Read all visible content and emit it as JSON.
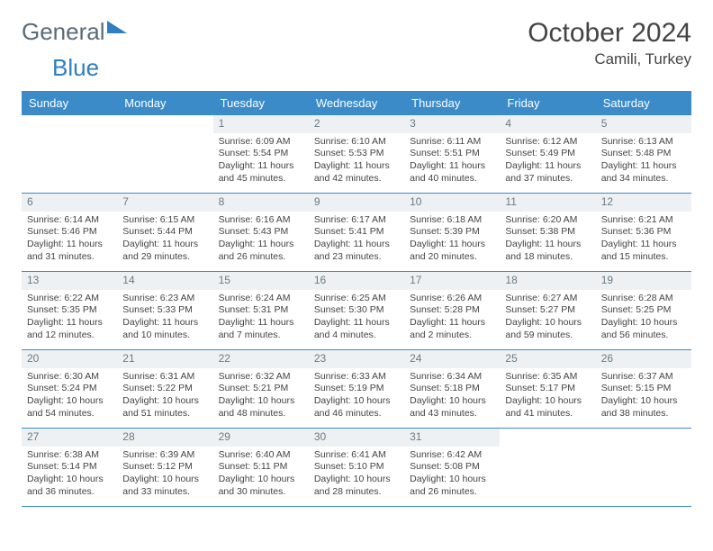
{
  "brand": {
    "part1": "General",
    "part2": "Blue"
  },
  "title": "October 2024",
  "location": "Camili, Turkey",
  "colors": {
    "header_bg": "#3b8bc9",
    "header_text": "#ffffff",
    "daynum_bg": "#eef1f3",
    "daynum_text": "#6a7a86",
    "body_text": "#444444",
    "brand_gray": "#5a6b78",
    "brand_blue": "#2f7ebf",
    "row_divider": "#3b8bc9"
  },
  "day_names": [
    "Sunday",
    "Monday",
    "Tuesday",
    "Wednesday",
    "Thursday",
    "Friday",
    "Saturday"
  ],
  "weeks": [
    [
      {
        "n": "",
        "sunrise": "",
        "sunset": "",
        "daylight": ""
      },
      {
        "n": "",
        "sunrise": "",
        "sunset": "",
        "daylight": ""
      },
      {
        "n": "1",
        "sunrise": "Sunrise: 6:09 AM",
        "sunset": "Sunset: 5:54 PM",
        "daylight": "Daylight: 11 hours and 45 minutes."
      },
      {
        "n": "2",
        "sunrise": "Sunrise: 6:10 AM",
        "sunset": "Sunset: 5:53 PM",
        "daylight": "Daylight: 11 hours and 42 minutes."
      },
      {
        "n": "3",
        "sunrise": "Sunrise: 6:11 AM",
        "sunset": "Sunset: 5:51 PM",
        "daylight": "Daylight: 11 hours and 40 minutes."
      },
      {
        "n": "4",
        "sunrise": "Sunrise: 6:12 AM",
        "sunset": "Sunset: 5:49 PM",
        "daylight": "Daylight: 11 hours and 37 minutes."
      },
      {
        "n": "5",
        "sunrise": "Sunrise: 6:13 AM",
        "sunset": "Sunset: 5:48 PM",
        "daylight": "Daylight: 11 hours and 34 minutes."
      }
    ],
    [
      {
        "n": "6",
        "sunrise": "Sunrise: 6:14 AM",
        "sunset": "Sunset: 5:46 PM",
        "daylight": "Daylight: 11 hours and 31 minutes."
      },
      {
        "n": "7",
        "sunrise": "Sunrise: 6:15 AM",
        "sunset": "Sunset: 5:44 PM",
        "daylight": "Daylight: 11 hours and 29 minutes."
      },
      {
        "n": "8",
        "sunrise": "Sunrise: 6:16 AM",
        "sunset": "Sunset: 5:43 PM",
        "daylight": "Daylight: 11 hours and 26 minutes."
      },
      {
        "n": "9",
        "sunrise": "Sunrise: 6:17 AM",
        "sunset": "Sunset: 5:41 PM",
        "daylight": "Daylight: 11 hours and 23 minutes."
      },
      {
        "n": "10",
        "sunrise": "Sunrise: 6:18 AM",
        "sunset": "Sunset: 5:39 PM",
        "daylight": "Daylight: 11 hours and 20 minutes."
      },
      {
        "n": "11",
        "sunrise": "Sunrise: 6:20 AM",
        "sunset": "Sunset: 5:38 PM",
        "daylight": "Daylight: 11 hours and 18 minutes."
      },
      {
        "n": "12",
        "sunrise": "Sunrise: 6:21 AM",
        "sunset": "Sunset: 5:36 PM",
        "daylight": "Daylight: 11 hours and 15 minutes."
      }
    ],
    [
      {
        "n": "13",
        "sunrise": "Sunrise: 6:22 AM",
        "sunset": "Sunset: 5:35 PM",
        "daylight": "Daylight: 11 hours and 12 minutes."
      },
      {
        "n": "14",
        "sunrise": "Sunrise: 6:23 AM",
        "sunset": "Sunset: 5:33 PM",
        "daylight": "Daylight: 11 hours and 10 minutes."
      },
      {
        "n": "15",
        "sunrise": "Sunrise: 6:24 AM",
        "sunset": "Sunset: 5:31 PM",
        "daylight": "Daylight: 11 hours and 7 minutes."
      },
      {
        "n": "16",
        "sunrise": "Sunrise: 6:25 AM",
        "sunset": "Sunset: 5:30 PM",
        "daylight": "Daylight: 11 hours and 4 minutes."
      },
      {
        "n": "17",
        "sunrise": "Sunrise: 6:26 AM",
        "sunset": "Sunset: 5:28 PM",
        "daylight": "Daylight: 11 hours and 2 minutes."
      },
      {
        "n": "18",
        "sunrise": "Sunrise: 6:27 AM",
        "sunset": "Sunset: 5:27 PM",
        "daylight": "Daylight: 10 hours and 59 minutes."
      },
      {
        "n": "19",
        "sunrise": "Sunrise: 6:28 AM",
        "sunset": "Sunset: 5:25 PM",
        "daylight": "Daylight: 10 hours and 56 minutes."
      }
    ],
    [
      {
        "n": "20",
        "sunrise": "Sunrise: 6:30 AM",
        "sunset": "Sunset: 5:24 PM",
        "daylight": "Daylight: 10 hours and 54 minutes."
      },
      {
        "n": "21",
        "sunrise": "Sunrise: 6:31 AM",
        "sunset": "Sunset: 5:22 PM",
        "daylight": "Daylight: 10 hours and 51 minutes."
      },
      {
        "n": "22",
        "sunrise": "Sunrise: 6:32 AM",
        "sunset": "Sunset: 5:21 PM",
        "daylight": "Daylight: 10 hours and 48 minutes."
      },
      {
        "n": "23",
        "sunrise": "Sunrise: 6:33 AM",
        "sunset": "Sunset: 5:19 PM",
        "daylight": "Daylight: 10 hours and 46 minutes."
      },
      {
        "n": "24",
        "sunrise": "Sunrise: 6:34 AM",
        "sunset": "Sunset: 5:18 PM",
        "daylight": "Daylight: 10 hours and 43 minutes."
      },
      {
        "n": "25",
        "sunrise": "Sunrise: 6:35 AM",
        "sunset": "Sunset: 5:17 PM",
        "daylight": "Daylight: 10 hours and 41 minutes."
      },
      {
        "n": "26",
        "sunrise": "Sunrise: 6:37 AM",
        "sunset": "Sunset: 5:15 PM",
        "daylight": "Daylight: 10 hours and 38 minutes."
      }
    ],
    [
      {
        "n": "27",
        "sunrise": "Sunrise: 6:38 AM",
        "sunset": "Sunset: 5:14 PM",
        "daylight": "Daylight: 10 hours and 36 minutes."
      },
      {
        "n": "28",
        "sunrise": "Sunrise: 6:39 AM",
        "sunset": "Sunset: 5:12 PM",
        "daylight": "Daylight: 10 hours and 33 minutes."
      },
      {
        "n": "29",
        "sunrise": "Sunrise: 6:40 AM",
        "sunset": "Sunset: 5:11 PM",
        "daylight": "Daylight: 10 hours and 30 minutes."
      },
      {
        "n": "30",
        "sunrise": "Sunrise: 6:41 AM",
        "sunset": "Sunset: 5:10 PM",
        "daylight": "Daylight: 10 hours and 28 minutes."
      },
      {
        "n": "31",
        "sunrise": "Sunrise: 6:42 AM",
        "sunset": "Sunset: 5:08 PM",
        "daylight": "Daylight: 10 hours and 26 minutes."
      },
      {
        "n": "",
        "sunrise": "",
        "sunset": "",
        "daylight": ""
      },
      {
        "n": "",
        "sunrise": "",
        "sunset": "",
        "daylight": ""
      }
    ]
  ]
}
